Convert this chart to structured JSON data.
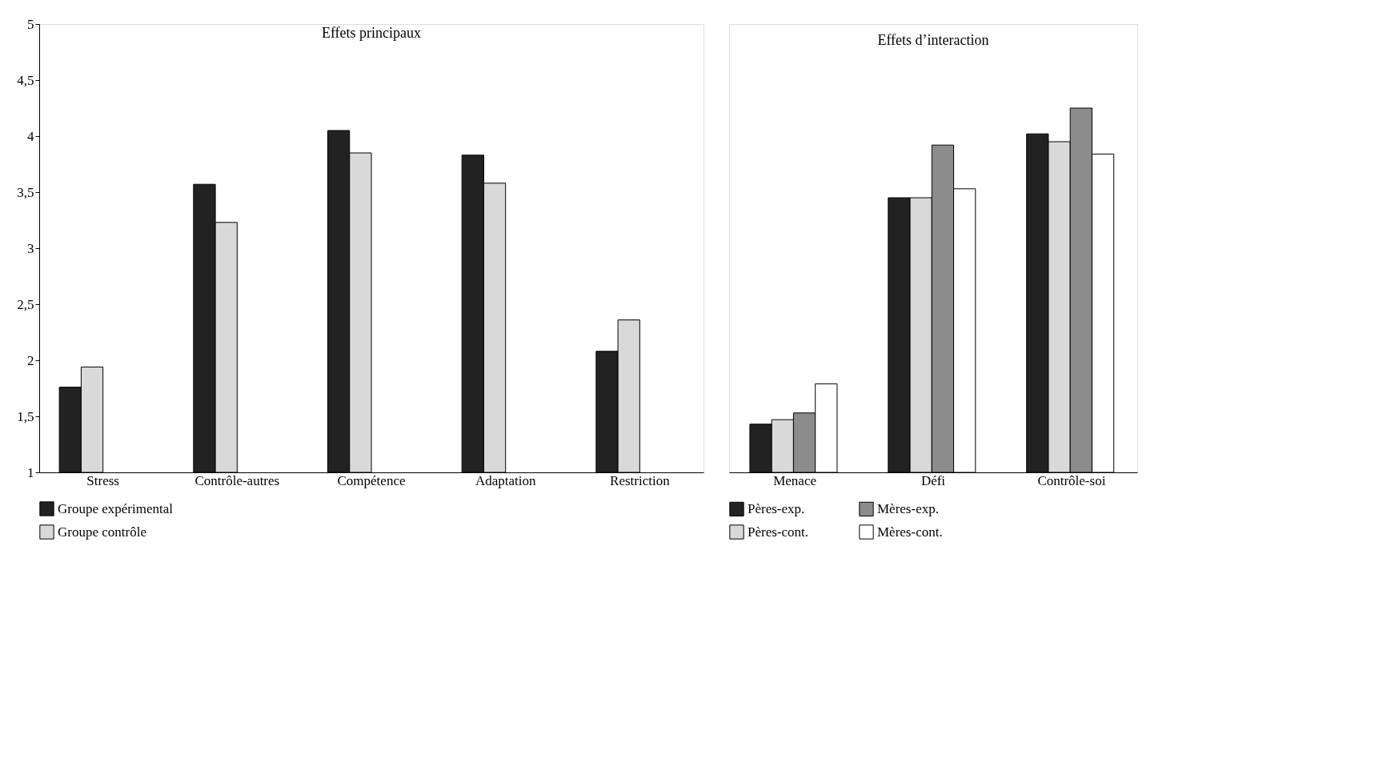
{
  "chart_data": [
    {
      "type": "bar",
      "title": "Effets principaux",
      "categories": [
        "Stress",
        "Contrôle-autres",
        "Compétence",
        "Adaptation",
        "Restriction"
      ],
      "series": [
        {
          "name": "Groupe expérimental",
          "color": "#222222",
          "values": [
            1.76,
            3.57,
            4.05,
            3.83,
            2.08
          ]
        },
        {
          "name": "Groupe contrôle",
          "color": "#d9d9d9",
          "values": [
            1.94,
            3.23,
            3.85,
            3.58,
            2.36
          ]
        }
      ],
      "ylim": [
        1,
        5
      ],
      "yticks": [
        1,
        {
          "value": 1.5,
          "label": "1,5"
        },
        2,
        {
          "value": 2.5,
          "label": "2,5"
        },
        3,
        {
          "value": 3.5,
          "label": "3,5"
        },
        4,
        {
          "value": 4.5,
          "label": "4,5"
        },
        5
      ],
      "grid": false,
      "legend": "bottom"
    },
    {
      "type": "bar",
      "title": "Effets d’interaction",
      "categories": [
        "Menace",
        "Défi",
        "Contrôle-soi"
      ],
      "series": [
        {
          "name": "Pères-exp.",
          "color": "#222222",
          "values": [
            1.43,
            3.45,
            4.02
          ]
        },
        {
          "name": "Pères-cont.",
          "color": "#d9d9d9",
          "values": [
            1.47,
            3.45,
            3.95
          ]
        },
        {
          "name": "Mères-exp.",
          "color": "#8c8c8c",
          "values": [
            1.53,
            3.92,
            4.25
          ]
        },
        {
          "name": "Mères-cont.",
          "color": "#ffffff",
          "values": [
            1.79,
            3.53,
            3.84
          ]
        }
      ],
      "ylim": [
        1,
        5
      ],
      "tick_labels": "x",
      "grid": false,
      "legend": "bottom"
    }
  ]
}
